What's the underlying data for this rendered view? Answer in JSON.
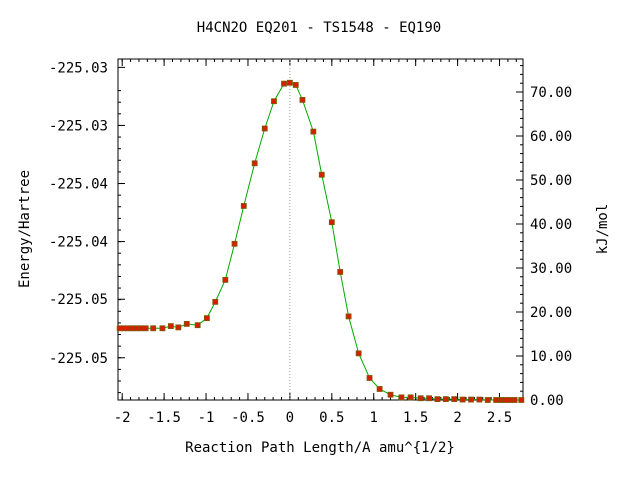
{
  "chart_data": {
    "type": "scatter",
    "title": "H4CN2O    EQ201 - TS1548 - EQ190",
    "xlabel": "Reaction Path Length/A amu^{1/2}",
    "ylabel_left": "Energy/Hartree",
    "ylabel_right": "kJ/mol",
    "xlim": [
      -2.05,
      2.78
    ],
    "ylim_kj": [
      0,
      77.5
    ],
    "x_ticks": [
      {
        "value": -2,
        "label": "-2"
      },
      {
        "value": -1.5,
        "label": "-1.5"
      },
      {
        "value": -1,
        "label": "-1"
      },
      {
        "value": -0.5,
        "label": "-0.5"
      },
      {
        "value": 0,
        "label": "0"
      },
      {
        "value": 0.5,
        "label": "0.5"
      },
      {
        "value": 1,
        "label": "1"
      },
      {
        "value": 1.5,
        "label": "1.5"
      },
      {
        "value": 2,
        "label": "2"
      },
      {
        "value": 2.5,
        "label": "2.5"
      }
    ],
    "y_left_ticks": [
      {
        "kj": 75.6,
        "label": "-225.03"
      },
      {
        "kj": 62.4,
        "label": "-225.03"
      },
      {
        "kj": 49.2,
        "label": "-225.04"
      },
      {
        "kj": 36.0,
        "label": "-225.04"
      },
      {
        "kj": 22.9,
        "label": "-225.05"
      },
      {
        "kj": 9.6,
        "label": "-225.05"
      }
    ],
    "y_right_ticks": [
      {
        "kj": 0,
        "label": "0.00"
      },
      {
        "kj": 10,
        "label": "10.00"
      },
      {
        "kj": 20,
        "label": "20.00"
      },
      {
        "kj": 30,
        "label": "30.00"
      },
      {
        "kj": 40,
        "label": "40.00"
      },
      {
        "kj": 50,
        "label": "50.00"
      },
      {
        "kj": 60,
        "label": "60.00"
      },
      {
        "kj": 70,
        "label": "70.00"
      }
    ],
    "ts_x": 0,
    "points_x": [
      -2.03,
      -1.98,
      -1.93,
      -1.88,
      -1.83,
      -1.78,
      -1.72,
      -1.63,
      -1.52,
      -1.42,
      -1.33,
      -1.23,
      -1.1,
      -0.99,
      -0.89,
      -0.77,
      -0.66,
      -0.55,
      -0.42,
      -0.3,
      -0.19,
      -0.07,
      0.0,
      0.07,
      0.15,
      0.28,
      0.38,
      0.5,
      0.6,
      0.7,
      0.82,
      0.95,
      1.07,
      1.2,
      1.33,
      1.44,
      1.56,
      1.66,
      1.76,
      1.86,
      1.96,
      2.06,
      2.16,
      2.26,
      2.36,
      2.46,
      2.52,
      2.57,
      2.63,
      2.68,
      2.76
    ],
    "points_kj": [
      16.3,
      16.3,
      16.3,
      16.3,
      16.3,
      16.3,
      16.3,
      16.3,
      16.3,
      16.8,
      16.5,
      17.3,
      17.0,
      18.6,
      22.3,
      27.3,
      35.5,
      44.1,
      53.8,
      61.7,
      67.9,
      71.9,
      72.1,
      71.6,
      68.2,
      61.0,
      51.2,
      40.4,
      29.1,
      19.0,
      10.6,
      5.0,
      2.5,
      1.2,
      0.6,
      0.6,
      0.4,
      0.4,
      0.2,
      0.2,
      0.2,
      0.1,
      0.1,
      0.1,
      0.0,
      0.0,
      0.0,
      0.0,
      0.0,
      0.0,
      0.0
    ],
    "line_color": "#00aa00",
    "marker_color": "#d42000",
    "marker_edge_color": "#7a5a00",
    "ts_line_color": "#999999"
  }
}
